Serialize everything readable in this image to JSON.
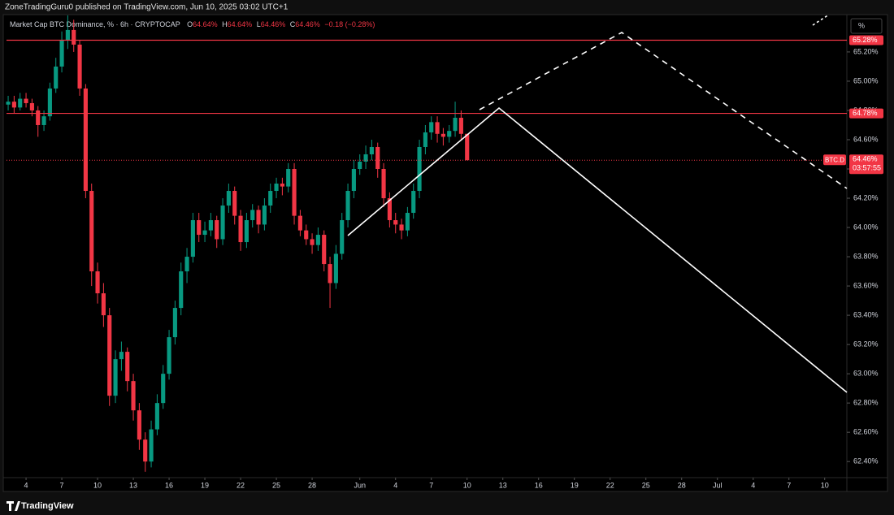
{
  "header": {
    "byline": "ZoneTradingGuru0 published on TradingView.com, Jun 10, 2025 03:02 UTC+1",
    "symbol": "Market Cap BTC Dominance, % · 6h · CRYPTOCAP",
    "ohlc": [
      {
        "key": "O",
        "value": "64.64%"
      },
      {
        "key": "H",
        "value": "64.64%"
      },
      {
        "key": "L",
        "value": "64.46%"
      },
      {
        "key": "C",
        "value": "64.46%"
      }
    ],
    "change": "−0.18 (−0.28%)",
    "scale_button": "%"
  },
  "footer": {
    "brand": "TradingView"
  },
  "chart_data": {
    "type": "candlestick",
    "up_color": "#089981",
    "down_color": "#f23645",
    "candles": [
      [
        2.5,
        64.84,
        64.9,
        64.8,
        64.86
      ],
      [
        3,
        64.86,
        64.9,
        64.78,
        64.82
      ],
      [
        3.5,
        64.82,
        64.92,
        64.8,
        64.88
      ],
      [
        4,
        64.88,
        64.92,
        64.82,
        64.85
      ],
      [
        4.5,
        64.85,
        64.88,
        64.76,
        64.8
      ],
      [
        5,
        64.8,
        64.83,
        64.62,
        64.7
      ],
      [
        5.5,
        64.7,
        64.8,
        64.66,
        64.76
      ],
      [
        6,
        64.76,
        64.99,
        64.73,
        64.95
      ],
      [
        6.5,
        64.95,
        65.16,
        64.92,
        65.1
      ],
      [
        7,
        65.1,
        65.34,
        65.06,
        65.28
      ],
      [
        7.5,
        65.28,
        65.45,
        65.22,
        65.35
      ],
      [
        8,
        65.35,
        65.42,
        65.2,
        65.25
      ],
      [
        8.5,
        65.25,
        65.28,
        64.9,
        64.95
      ],
      [
        9,
        64.95,
        64.98,
        64.2,
        64.25
      ],
      [
        9.5,
        64.25,
        64.3,
        63.6,
        63.7
      ],
      [
        10,
        63.7,
        63.76,
        63.48,
        63.55
      ],
      [
        10.5,
        63.55,
        63.62,
        63.32,
        63.4
      ],
      [
        11,
        63.4,
        63.45,
        62.78,
        62.85
      ],
      [
        11.5,
        62.85,
        63.16,
        62.8,
        63.1
      ],
      [
        12,
        63.1,
        63.22,
        63.02,
        63.15
      ],
      [
        12.5,
        63.15,
        63.18,
        62.88,
        62.95
      ],
      [
        13,
        62.95,
        63.0,
        62.68,
        62.75
      ],
      [
        13.5,
        62.75,
        62.8,
        62.48,
        62.55
      ],
      [
        14,
        62.55,
        62.6,
        62.33,
        62.4
      ],
      [
        14.5,
        62.4,
        62.68,
        62.36,
        62.62
      ],
      [
        15,
        62.62,
        62.86,
        62.58,
        62.8
      ],
      [
        15.5,
        62.8,
        63.06,
        62.76,
        63.0
      ],
      [
        16,
        63.0,
        63.3,
        62.96,
        63.25
      ],
      [
        16.5,
        63.25,
        63.5,
        63.2,
        63.45
      ],
      [
        17,
        63.45,
        63.76,
        63.4,
        63.7
      ],
      [
        17.5,
        63.7,
        63.86,
        63.62,
        63.8
      ],
      [
        18,
        63.8,
        64.1,
        63.76,
        64.05
      ],
      [
        18.5,
        64.05,
        64.1,
        63.9,
        63.95
      ],
      [
        19,
        63.95,
        64.04,
        63.9,
        63.98
      ],
      [
        19.5,
        63.98,
        64.1,
        63.94,
        64.05
      ],
      [
        20,
        64.05,
        64.08,
        63.86,
        63.92
      ],
      [
        20.5,
        63.92,
        64.2,
        63.88,
        64.15
      ],
      [
        21,
        64.15,
        64.3,
        64.1,
        64.25
      ],
      [
        21.5,
        64.25,
        64.28,
        64.02,
        64.08
      ],
      [
        22,
        64.08,
        64.12,
        63.84,
        63.9
      ],
      [
        22.5,
        63.9,
        64.1,
        63.86,
        64.05
      ],
      [
        23,
        64.05,
        64.16,
        64.0,
        64.12
      ],
      [
        23.5,
        64.12,
        64.15,
        63.96,
        64.02
      ],
      [
        24,
        64.02,
        64.2,
        63.98,
        64.15
      ],
      [
        24.5,
        64.15,
        64.3,
        64.1,
        64.25
      ],
      [
        25,
        64.25,
        64.34,
        64.2,
        64.3
      ],
      [
        25.5,
        64.3,
        64.34,
        64.22,
        64.28
      ],
      [
        26,
        64.28,
        64.44,
        64.24,
        64.4
      ],
      [
        26.5,
        64.4,
        64.44,
        64.02,
        64.08
      ],
      [
        27,
        64.08,
        64.12,
        63.94,
        63.98
      ],
      [
        27.5,
        63.98,
        64.02,
        63.88,
        63.92
      ],
      [
        28,
        63.92,
        63.96,
        63.82,
        63.88
      ],
      [
        28.5,
        63.88,
        64.0,
        63.84,
        63.95
      ],
      [
        29,
        63.95,
        63.98,
        63.7,
        63.75
      ],
      [
        29.5,
        63.75,
        63.8,
        63.45,
        63.62
      ],
      [
        30,
        63.62,
        63.88,
        63.58,
        63.82
      ],
      [
        30.5,
        63.82,
        64.1,
        63.78,
        64.05
      ],
      [
        31,
        64.05,
        64.3,
        64.0,
        64.25
      ],
      [
        31.5,
        64.25,
        64.46,
        64.2,
        64.4
      ],
      [
        32,
        64.4,
        64.5,
        64.36,
        64.45
      ],
      [
        32.5,
        64.45,
        64.56,
        64.4,
        64.5
      ],
      [
        33,
        64.5,
        64.6,
        64.46,
        64.55
      ],
      [
        33.5,
        64.55,
        64.58,
        64.34,
        64.4
      ],
      [
        34,
        64.4,
        64.44,
        64.14,
        64.2
      ],
      [
        34.5,
        64.2,
        64.24,
        64.0,
        64.05
      ],
      [
        35,
        64.05,
        64.1,
        63.96,
        64.02
      ],
      [
        35.5,
        64.02,
        64.06,
        63.92,
        63.98
      ],
      [
        36,
        63.98,
        64.14,
        63.94,
        64.1
      ],
      [
        36.5,
        64.1,
        64.3,
        64.06,
        64.25
      ],
      [
        37,
        64.25,
        64.6,
        64.2,
        64.55
      ],
      [
        37.5,
        64.55,
        64.7,
        64.5,
        64.65
      ],
      [
        38,
        64.65,
        64.76,
        64.6,
        64.72
      ],
      [
        38.5,
        64.72,
        64.76,
        64.58,
        64.64
      ],
      [
        39,
        64.64,
        64.68,
        64.56,
        64.62
      ],
      [
        39.5,
        64.62,
        64.7,
        64.58,
        64.66
      ],
      [
        40,
        64.66,
        64.86,
        64.62,
        64.75
      ],
      [
        40.5,
        64.75,
        64.8,
        64.6,
        64.64
      ],
      [
        41,
        64.64,
        64.64,
        64.46,
        64.46
      ]
    ],
    "xlim": [
      2.36,
      72.86
    ],
    "xticks": [
      4,
      7,
      10,
      13,
      16,
      19,
      22,
      25,
      28,
      {
        "value": 32,
        "label": "Jun"
      },
      {
        "value": 35,
        "label": "4"
      },
      {
        "value": 38,
        "label": "7"
      },
      {
        "value": 41,
        "label": "10"
      },
      {
        "value": 44,
        "label": "13"
      },
      {
        "value": 47,
        "label": "16"
      },
      {
        "value": 50,
        "label": "19"
      },
      {
        "value": 53,
        "label": "22"
      },
      {
        "value": 56,
        "label": "25"
      },
      {
        "value": 59,
        "label": "28"
      },
      {
        "value": 62,
        "label": "Jul"
      },
      {
        "value": 65,
        "label": "4"
      },
      {
        "value": 68,
        "label": "7"
      },
      {
        "value": 71,
        "label": "10"
      }
    ],
    "ylim": [
      62.29,
      65.455
    ],
    "yticks": [
      {
        "value": 62.4,
        "label": "62.40%"
      },
      {
        "value": 62.6,
        "label": "62.60%"
      },
      {
        "value": 62.8,
        "label": "62.80%"
      },
      {
        "value": 63.0,
        "label": "63.00%"
      },
      {
        "value": 63.2,
        "label": "63.20%"
      },
      {
        "value": 63.4,
        "label": "63.40%"
      },
      {
        "value": 63.6,
        "label": "63.60%"
      },
      {
        "value": 63.8,
        "label": "63.80%"
      },
      {
        "value": 64.0,
        "label": "64.00%"
      },
      {
        "value": 64.2,
        "label": "64.20%"
      },
      {
        "value": 64.4,
        "label": "64.40%"
      },
      {
        "value": 64.6,
        "label": "64.60%"
      },
      {
        "value": 64.8,
        "label": "64.80%"
      },
      {
        "value": 65.0,
        "label": "65.00%"
      },
      {
        "value": 65.2,
        "label": "65.20%"
      }
    ],
    "hlines": [
      {
        "value": 65.28,
        "label": "65.28%",
        "color": "#f23645"
      },
      {
        "value": 64.78,
        "label": "64.78%",
        "color": "#f23645"
      }
    ],
    "last_price": {
      "symbol": "BTC.D",
      "value": 64.46,
      "label": "64.46%",
      "countdown": "03:57:55",
      "color": "#f23645"
    }
  }
}
